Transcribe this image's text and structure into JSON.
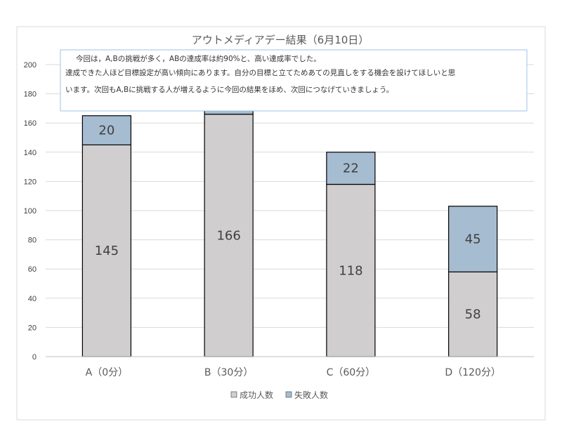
{
  "chart_data": {
    "type": "bar",
    "stacked": true,
    "title": "アウトメディアデー結果（6月10日）",
    "categories": [
      "A（0分）",
      "B（30分）",
      "C（60分）",
      "D（120分）"
    ],
    "series": [
      {
        "name": "成功人数",
        "values": [
          145,
          166,
          118,
          58
        ],
        "color": "#d0cece"
      },
      {
        "name": "失敗人数",
        "values": [
          20,
          15,
          22,
          45
        ],
        "color": "#a6bcd1"
      }
    ],
    "ylim": [
      0,
      200
    ],
    "yticks": [
      0,
      20,
      40,
      60,
      80,
      100,
      120,
      140,
      160,
      180,
      200
    ],
    "grid": true,
    "legend_position": "bottom",
    "annotation": {
      "lines": [
        "今回は，A,Bの挑戦が多く，ABの達成率は約90%と、高い達成率でした。",
        "達成できた人ほど目標設定が高い傾向にあります。自分の目標と立てためあての見直しをする機会を設けてほしいと思",
        "います。次回もA,Bに挑戦する人が増えるように今回の結果をほめ、次回につなげていきましょう。"
      ]
    }
  }
}
